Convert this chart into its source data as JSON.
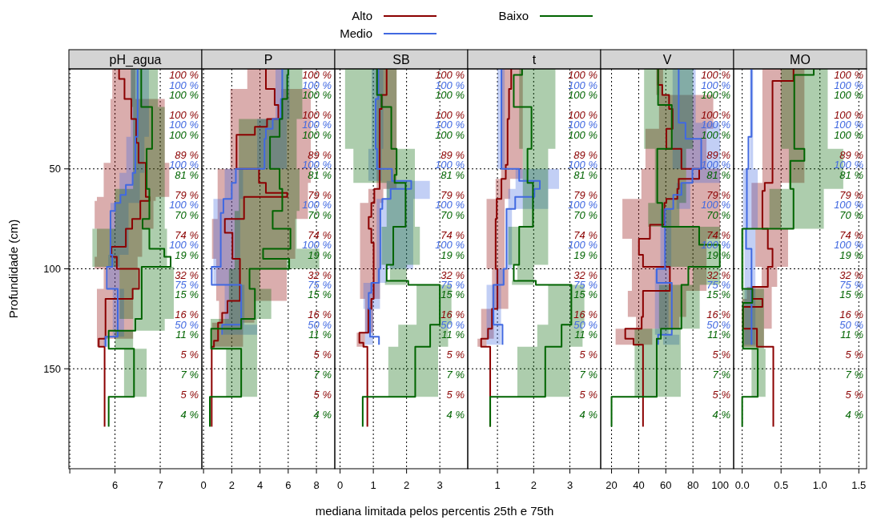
{
  "chart_data": [
    {
      "type": "step",
      "orientation": "horizontal",
      "title": "pH_agua",
      "ylabel": "Profundidade (cm)",
      "legend": "top",
      "grid": true,
      "xlim": [
        4.98,
        7.92
      ],
      "xticks": [
        {
          "value": 5,
          "label": null
        },
        6,
        7
      ],
      "ylim": [
        200,
        0
      ],
      "yticks": [
        50,
        100,
        150
      ],
      "series": [
        {
          "name": "Alto",
          "color": "#8b0000",
          "x": [
            0,
            5,
            15,
            25,
            37,
            47,
            64,
            66,
            75,
            80,
            89,
            94,
            100,
            110,
            115,
            135,
            139,
            179
          ],
          "values": [
            6.09,
            6.21,
            6.36,
            6.47,
            6.52,
            6.68,
            6.76,
            6.56,
            6.38,
            6.24,
            5.92,
            6.04,
            6.53,
            6.39,
            5.79,
            5.64,
            5.77,
            5.77
          ],
          "lower": [
            5.94,
            5.94,
            5.9,
            5.9,
            5.9,
            5.75,
            5.6,
            5.55,
            5.55,
            5.6,
            5.6,
            5.55,
            5.75,
            5.6,
            5.6,
            5.6,
            5.6,
            null
          ],
          "upper": [
            6.45,
            6.45,
            7.1,
            7.1,
            7.1,
            7.2,
            6.9,
            6.85,
            6.85,
            6.6,
            6.6,
            6.5,
            6.5,
            6.4,
            6.4,
            5.8,
            5.8,
            null
          ]
        },
        {
          "name": "Medio",
          "color": "#4169e1",
          "x": [
            0,
            34,
            52,
            58,
            63,
            67,
            71,
            93,
            99,
            110,
            134,
            139
          ],
          "values": [
            6.5,
            6.45,
            6.39,
            6.24,
            6.12,
            6.0,
            5.9,
            5.94,
            5.82,
            6.06,
            5.79,
            5.79
          ],
          "lower": [
            6.35,
            6.25,
            6.1,
            6.1,
            6.1,
            5.9,
            5.9,
            5.85,
            5.85,
            5.95,
            5.75,
            5.75
          ],
          "upper": [
            6.75,
            6.65,
            6.55,
            6.55,
            6.55,
            6.3,
            6.3,
            6.1,
            6.1,
            6.2,
            5.85,
            5.85
          ]
        },
        {
          "name": "Baixo",
          "color": "#006400",
          "x": [
            0,
            19,
            40,
            60,
            75,
            80,
            90,
            94,
            99,
            125,
            131,
            140,
            164,
            179
          ],
          "values": [
            6.58,
            6.82,
            6.7,
            6.76,
            6.61,
            6.76,
            7.09,
            7.23,
            6.59,
            6.45,
            5.86,
            6.42,
            5.86,
            5.86
          ],
          "lower": [
            6.35,
            6.4,
            6.4,
            6.0,
            6.0,
            5.5,
            5.5,
            5.5,
            6.1,
            6.4,
            6.0,
            6.2,
            6.2,
            null
          ],
          "upper": [
            6.95,
            7.1,
            7.1,
            7.1,
            7.1,
            7.15,
            7.15,
            7.15,
            7.3,
            7.1,
            6.4,
            6.7,
            6.7,
            null
          ]
        }
      ],
      "annotations": [
        "100 %",
        "100 %",
        "100 %",
        "100 %",
        "100 %",
        "100 %",
        "89 %",
        "100 %",
        "81 %",
        "79 %",
        "100 %",
        "70 %",
        "74 %",
        "100 %",
        "19 %",
        "32 %",
        "75 %",
        "15 %",
        "16 %",
        "50 %",
        "11 %",
        "5 %",
        "7 %",
        "5 %",
        "4 %"
      ]
    },
    {
      "type": "step",
      "orientation": "horizontal",
      "title": "P",
      "grid": true,
      "tick_labels": "x",
      "xlim": [
        -0.12,
        9.3
      ],
      "xticks": [
        0,
        2,
        4,
        6,
        8
      ],
      "ylim": [
        200,
        0
      ],
      "yticks": [
        50,
        100,
        150
      ],
      "series": [
        {
          "color": "#8b0000",
          "x": [
            0,
            10,
            18,
            25,
            29,
            33,
            50,
            57,
            62,
            64,
            75,
            82,
            95,
            116,
            122,
            127,
            136,
            139,
            179
          ],
          "values": [
            4.42,
            5.04,
            5.3,
            4.5,
            3.64,
            2.34,
            3.93,
            4.42,
            5.93,
            2.87,
            1.51,
            2.05,
            2.58,
            1.7,
            1.32,
            1.03,
            0.74,
            0.58,
            0.58
          ],
          "lower": [
            3.1,
            1.9,
            1.9,
            1.9,
            1.9,
            1.9,
            1.0,
            1.0,
            1.0,
            1.0,
            0.6,
            0.6,
            0.9,
            1.1,
            1.1,
            0.6,
            0.6,
            0.6,
            null
          ],
          "upper": [
            5.5,
            7.6,
            7.6,
            7.6,
            7.6,
            7.6,
            7.6,
            7.4,
            7.4,
            7.4,
            6.5,
            6.5,
            5.9,
            3.6,
            3.6,
            2.8,
            2.8,
            2.8,
            null
          ]
        },
        {
          "color": "#4169e1",
          "x": [
            0,
            15,
            25,
            30,
            35,
            50,
            57,
            65,
            72,
            99,
            108,
            128,
            133
          ],
          "values": [
            5.58,
            5.48,
            4.9,
            4.42,
            4.32,
            2.29,
            2.0,
            1.41,
            1.22,
            0.58,
            2.67,
            1.32,
            1.32
          ],
          "lower": [
            5.1,
            5.1,
            3.8,
            3.8,
            3.8,
            1.5,
            1.5,
            0.7,
            0.7,
            0.7,
            1.5,
            1.4,
            1.4
          ],
          "upper": [
            6.1,
            6.1,
            5.9,
            5.9,
            5.9,
            2.8,
            2.8,
            2.6,
            2.6,
            2.6,
            2.9,
            3.8,
            3.8
          ]
        },
        {
          "color": "#006400",
          "x": [
            0,
            3,
            15,
            25,
            34,
            50,
            60,
            71,
            80,
            90,
            95,
            100,
            110,
            125,
            130,
            140,
            164,
            179
          ],
          "values": [
            6.0,
            5.93,
            5.58,
            5.39,
            4.71,
            5.39,
            5.58,
            4.9,
            6.16,
            4.22,
            6.07,
            3.26,
            3.64,
            2.67,
            0.54,
            2.67,
            0.45,
            0.45
          ],
          "lower": [
            5.5,
            5.5,
            5.5,
            2.5,
            2.5,
            2.5,
            2.5,
            2.2,
            2.2,
            2.2,
            2.2,
            1.8,
            1.8,
            0.5,
            0.5,
            1.6,
            1.6,
            null
          ],
          "upper": [
            7.0,
            7.0,
            7.0,
            6.6,
            6.6,
            6.8,
            6.8,
            6.6,
            6.6,
            8.2,
            8.2,
            4.0,
            4.8,
            3.8,
            3.8,
            3.8,
            3.8,
            null
          ]
        }
      ],
      "annotations": [
        "100 %",
        "100 %",
        "100 %",
        "100 %",
        "100 %",
        "100 %",
        "89 %",
        "100 %",
        "81 %",
        "79 %",
        "100 %",
        "70 %",
        "74 %",
        "100 %",
        "19 %",
        "32 %",
        "75 %",
        "15 %",
        "16 %",
        "50 %",
        "11 %",
        "5 %",
        "7 %",
        "5 %",
        "4 %"
      ]
    },
    {
      "type": "step",
      "orientation": "horizontal",
      "title": "SB",
      "xlabel": "mediana limitada pelos percentis 25th e 75th",
      "grid": true,
      "tick_labels": "x",
      "xlim": [
        -0.16,
        3.84
      ],
      "xticks": [
        0,
        1,
        2,
        3
      ],
      "ylim": [
        200,
        0
      ],
      "yticks": [
        50,
        100,
        150
      ],
      "series": [
        {
          "color": "#8b0000",
          "x": [
            0,
            13,
            20,
            60,
            67,
            74,
            80,
            87,
            115,
            120,
            132,
            137,
            139,
            179
          ],
          "values": [
            1.4,
            1.25,
            1.19,
            1.03,
            0.94,
            0.86,
            0.94,
            1.01,
            0.94,
            0.85,
            0.58,
            0.7,
            0.82,
            0.82
          ],
          "lower": [
            1.1,
            1.1,
            1.1,
            0.85,
            0.6,
            0.6,
            0.6,
            0.6,
            0.75,
            0.75,
            0.5,
            0.5,
            0.5,
            null
          ],
          "upper": [
            1.7,
            1.7,
            1.7,
            1.3,
            1.2,
            1.2,
            1.2,
            1.2,
            1.0,
            1.0,
            0.75,
            0.75,
            0.75,
            null
          ]
        },
        {
          "color": "#4169e1",
          "x": [
            0,
            15,
            40,
            50,
            56,
            60,
            65,
            70,
            100,
            107,
            112,
            120,
            134,
            138
          ],
          "values": [
            1.15,
            1.07,
            1.11,
            1.56,
            2.14,
            1.52,
            1.27,
            1.21,
            1.17,
            0.94,
            0.86,
            0.9,
            1.17,
            1.17
          ],
          "lower": [
            0.95,
            0.95,
            0.85,
            0.85,
            1.4,
            1.4,
            1.1,
            1.1,
            1.1,
            0.7,
            0.7,
            0.75,
            0.75,
            0.75
          ],
          "upper": [
            1.3,
            1.3,
            1.25,
            1.25,
            2.7,
            2.7,
            2.2,
            2.2,
            1.4,
            1.2,
            1.2,
            1.0,
            1.0,
            1.0
          ]
        },
        {
          "color": "#006400",
          "x": [
            0,
            13,
            19,
            40,
            53,
            57,
            79,
            98,
            106,
            108,
            128,
            139,
            164,
            179
          ],
          "values": [
            1.11,
            1.25,
            1.54,
            1.7,
            1.64,
            1.97,
            1.6,
            1.4,
            2.05,
            3.0,
            2.71,
            2.26,
            0.68,
            0.68
          ],
          "lower": [
            0.15,
            0.15,
            0.15,
            0.4,
            0.4,
            1.4,
            1.25,
            1.5,
            1.35,
            2.3,
            1.75,
            1.45,
            1.45,
            null
          ],
          "upper": [
            1.7,
            1.7,
            1.7,
            2.25,
            2.25,
            2.25,
            2.4,
            2.0,
            2.0,
            3.35,
            3.25,
            2.95,
            2.95,
            null
          ]
        }
      ],
      "annotations": [
        "100 %",
        "100 %",
        "100 %",
        "100 %",
        "100 %",
        "100 %",
        "89 %",
        "100 %",
        "81 %",
        "79 %",
        "100 %",
        "70 %",
        "74 %",
        "100 %",
        "19 %",
        "32 %",
        "75 %",
        "15 %",
        "16 %",
        "50 %",
        "11 %",
        "5 %",
        "7 %",
        "5 %",
        "4 %"
      ]
    },
    {
      "type": "step",
      "orientation": "horizontal",
      "title": "t",
      "grid": true,
      "tick_labels": "x",
      "xlim": [
        0.18,
        3.85
      ],
      "xticks": [
        1,
        2,
        3
      ],
      "ylim": [
        200,
        0
      ],
      "yticks": [
        50,
        100,
        150
      ],
      "series": [
        {
          "color": "#8b0000",
          "x": [
            0,
            10,
            25,
            48,
            55,
            65,
            75,
            100,
            120,
            130,
            135,
            139,
            179
          ],
          "values": [
            1.38,
            1.32,
            1.28,
            1.23,
            1.11,
            0.98,
            0.95,
            1.0,
            0.85,
            0.74,
            0.55,
            0.8,
            0.8
          ],
          "lower": [
            1.1,
            1.1,
            1.1,
            1.1,
            0.95,
            0.7,
            0.7,
            0.85,
            0.55,
            0.55,
            0.45,
            0.45,
            null
          ],
          "upper": [
            1.7,
            1.7,
            1.7,
            1.7,
            1.35,
            1.2,
            1.2,
            1.3,
            0.9,
            0.9,
            0.7,
            0.7,
            null
          ]
        },
        {
          "color": "#4169e1",
          "x": [
            0,
            50,
            56,
            60,
            64,
            70,
            100,
            108,
            128,
            138
          ],
          "values": [
            1.11,
            1.6,
            2.17,
            2.02,
            1.49,
            1.25,
            1.17,
            0.89,
            1.14,
            1.14
          ],
          "lower": [
            1.0,
            1.5,
            1.5,
            1.3,
            1.3,
            1.25,
            0.95,
            0.7,
            0.7,
            0.7
          ],
          "upper": [
            1.2,
            2.7,
            2.7,
            2.4,
            2.4,
            1.4,
            1.2,
            1.1,
            1.1,
            1.1
          ]
        },
        {
          "color": "#006400",
          "x": [
            0,
            3,
            19,
            40,
            57,
            79,
            98,
            106,
            108,
            128,
            139,
            164,
            179
          ],
          "values": [
            1.68,
            1.45,
            1.94,
            1.83,
            1.98,
            1.6,
            1.45,
            2.06,
            3.04,
            2.77,
            2.32,
            0.8,
            0.8
          ],
          "lower": [
            1.6,
            1.6,
            1.6,
            1.7,
            1.7,
            1.3,
            1.55,
            1.4,
            2.4,
            2.1,
            1.55,
            1.55,
            null
          ],
          "upper": [
            2.6,
            2.6,
            2.6,
            2.4,
            2.4,
            2.4,
            2.0,
            2.0,
            3.4,
            3.35,
            3.0,
            3.0,
            null
          ]
        }
      ],
      "annotations": [
        "100 %",
        "100 %",
        "100 %",
        "100 %",
        "100 %",
        "100 %",
        "89 %",
        "100 %",
        "81 %",
        "79 %",
        "100 %",
        "70 %",
        "74 %",
        "100 %",
        "19 %",
        "32 %",
        "75 %",
        "15 %",
        "16 %",
        "50 %",
        "11 %",
        "5 %",
        "7 %",
        "5 %",
        "4 %"
      ]
    },
    {
      "type": "step",
      "orientation": "horizontal",
      "title": "V",
      "grid": true,
      "tick_labels": "x",
      "xlim": [
        12,
        110
      ],
      "xticks": [
        20,
        40,
        60,
        80,
        100
      ],
      "ylim": [
        200,
        0
      ],
      "yticks": [
        50,
        100,
        150
      ],
      "series": [
        {
          "color": "#8b0000",
          "x": [
            0,
            8,
            13,
            20,
            30,
            40,
            50,
            55,
            60,
            65,
            67,
            78,
            85,
            93,
            99,
            111,
            124,
            130,
            135,
            138,
            179
          ],
          "values": [
            54.3,
            57.4,
            62.4,
            65.0,
            60.4,
            71.5,
            84.6,
            69.5,
            68.5,
            60.4,
            59.0,
            48.3,
            40.2,
            43.2,
            63.0,
            43.2,
            42.2,
            30.1,
            36.2,
            43.2,
            43.2
          ],
          "lower": [
            53,
            53,
            55,
            55,
            45,
            45,
            42,
            42,
            42,
            28,
            28,
            28,
            35,
            35,
            35,
            32,
            38,
            23,
            23,
            23,
            null
          ],
          "upper": [
            58,
            58,
            95,
            95,
            90,
            90,
            100,
            100,
            100,
            100,
            100,
            100,
            90,
            90,
            90,
            75,
            70,
            50,
            50,
            50,
            null
          ]
        },
        {
          "color": "#4169e1",
          "x": [
            0,
            27,
            35,
            50,
            57,
            63,
            70,
            100,
            107,
            133,
            138
          ],
          "values": [
            69.5,
            74.5,
            86.1,
            79.6,
            71.5,
            65.5,
            59.4,
            53.3,
            64.4,
            54.3,
            54.3
          ],
          "lower": [
            65,
            65,
            65,
            75,
            68,
            68,
            56,
            52,
            52,
            58,
            58
          ],
          "upper": [
            82,
            100,
            100,
            100,
            78,
            78,
            64,
            62,
            62,
            70,
            70
          ]
        },
        {
          "color": "#006400",
          "x": [
            0,
            18,
            40,
            67,
            79,
            88,
            99,
            108,
            130,
            135,
            164,
            179
          ],
          "values": [
            54.3,
            64.4,
            53.7,
            57.4,
            84.6,
            99.8,
            76.6,
            71.5,
            56.4,
            53.3,
            20.0,
            20.0
          ],
          "lower": [
            44,
            44,
            52,
            47,
            60,
            60,
            80,
            55,
            37,
            37,
            37,
            null
          ],
          "upper": [
            80,
            80,
            75,
            70,
            100,
            100,
            100,
            85,
            71,
            71,
            71,
            null
          ]
        }
      ],
      "annotations": [
        "100 %",
        "100 %",
        "100 %",
        "100 %",
        "100 %",
        "100 %",
        "89 %",
        "100 %",
        "81 %",
        "79 %",
        "100 %",
        "70 %",
        "74 %",
        "100 %",
        "19 %",
        "32 %",
        "75 %",
        "15 %",
        "16 %",
        "50 %",
        "11 %",
        "5 %",
        "7 %",
        "5 %",
        "4 %"
      ]
    },
    {
      "type": "step",
      "orientation": "horizontal",
      "title": "MO",
      "grid": true,
      "tick_labels": "x",
      "xlim": [
        -0.11,
        1.6
      ],
      "xticks": [
        {
          "value": 0,
          "label": "0.0"
        },
        0.5,
        {
          "value": 1,
          "label": "1.0"
        },
        1.5
      ],
      "ylim": [
        200,
        0
      ],
      "yticks": [
        50,
        100,
        150
      ],
      "series": [
        {
          "color": "#8b0000",
          "x": [
            0,
            6,
            57,
            61,
            80,
            90,
            99,
            109,
            115,
            119,
            130,
            139,
            179
          ],
          "values": [
            0.66,
            0.39,
            0.29,
            0.26,
            0.33,
            0.39,
            0.33,
            0.13,
            0.26,
            0.01,
            0.19,
            0.4,
            0.4
          ],
          "lower": [
            0.26,
            0.26,
            0.12,
            0.12,
            0.17,
            0.17,
            0.25,
            0.06,
            0.0,
            0.0,
            0.0,
            0.0,
            null
          ],
          "upper": [
            0.8,
            0.8,
            0.5,
            0.5,
            0.59,
            0.59,
            0.45,
            0.38,
            0.38,
            0.38,
            0.28,
            0.28,
            null
          ]
        },
        {
          "color": "#4169e1",
          "x": [
            0,
            34,
            50,
            80,
            90,
            138
          ],
          "values": [
            0.12,
            0.08,
            0.06,
            0.05,
            0.12,
            0.12
          ],
          "lower": [
            0.1,
            0.1,
            0.01,
            0.03,
            0.03,
            0.1
          ],
          "upper": [
            0.14,
            0.14,
            0.2,
            0.17,
            0.17,
            0.13
          ]
        },
        {
          "color": "#006400",
          "x": [
            0,
            3,
            40,
            46,
            60,
            80,
            110,
            117,
            140,
            164,
            179
          ],
          "values": [
            0.92,
            0.67,
            0.8,
            0.62,
            0.66,
            0.0,
            0.13,
            0.01,
            0.2,
            0.0,
            0.0
          ],
          "lower": [
            0.5,
            0.5,
            0.6,
            0.6,
            0.35,
            0.0,
            0.0,
            0.0,
            0.12,
            0.12,
            null
          ],
          "upper": [
            1.1,
            1.1,
            1.3,
            1.3,
            1.05,
            0.02,
            0.28,
            0.28,
            0.3,
            0.3,
            null
          ]
        }
      ],
      "annotations": [
        "100 %",
        "100 %",
        "100 %",
        "100 %",
        "100 %",
        "100 %",
        "89 %",
        "100 %",
        "81 %",
        "79 %",
        "100 %",
        "70 %",
        "74 %",
        "100 %",
        "19 %",
        "32 %",
        "75 %",
        "15 %",
        "16 %",
        "50 %",
        "11 %",
        "5 %",
        "7 %",
        "5 %",
        "4 %"
      ]
    }
  ]
}
